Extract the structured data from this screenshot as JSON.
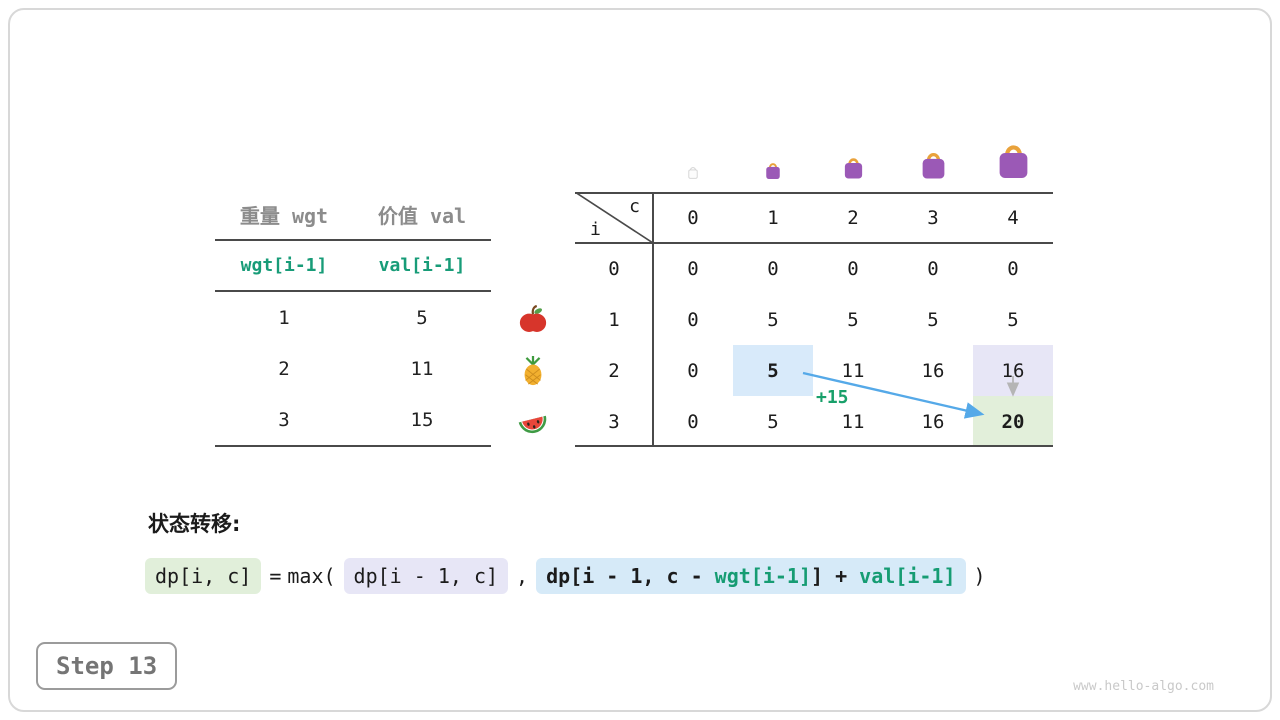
{
  "card": {
    "step_label": "Step 13",
    "watermark": "www.hello-algo.com"
  },
  "item_table": {
    "col_headers": [
      "重量 wgt",
      "价值 val"
    ],
    "var_row": [
      "wgt[i-1]",
      "val[i-1]"
    ],
    "rows": [
      [
        "1",
        "5"
      ],
      [
        "2",
        "11"
      ],
      [
        "3",
        "15"
      ]
    ]
  },
  "items": [
    {
      "icon": "apple-icon"
    },
    {
      "icon": "pineapple-icon"
    },
    {
      "icon": "watermelon-icon"
    }
  ],
  "dp_table": {
    "corner": {
      "row_label": "i",
      "col_label": "c"
    },
    "col_headers": [
      "0",
      "1",
      "2",
      "3",
      "4"
    ],
    "row_headers": [
      "0",
      "1",
      "2",
      "3"
    ],
    "values": [
      [
        "0",
        "0",
        "0",
        "0",
        "0"
      ],
      [
        "0",
        "5",
        "5",
        "5",
        "5"
      ],
      [
        "0",
        "5",
        "11",
        "16",
        "16"
      ],
      [
        "0",
        "5",
        "11",
        "16",
        "20"
      ]
    ],
    "highlights": [
      {
        "row": 2,
        "col": 1,
        "style": "hl-blue",
        "bold": true
      },
      {
        "row": 2,
        "col": 4,
        "style": "hl-lavender",
        "bold": false
      },
      {
        "row": 3,
        "col": 4,
        "style": "hl-green",
        "bold": true
      }
    ],
    "bags": [
      {
        "icon": "bag-outline-icon",
        "variant": "ghost"
      },
      {
        "icon": "bag-icon",
        "variant": "purple"
      },
      {
        "icon": "bag-icon",
        "variant": "purple"
      },
      {
        "icon": "bag-icon",
        "variant": "purple"
      },
      {
        "icon": "bag-icon",
        "variant": "purple"
      }
    ],
    "transition_annotation": "+15"
  },
  "formula": {
    "heading": "状态转移:",
    "lhs": "dp[i, c]",
    "equals": "=",
    "func": "max(",
    "arg1": "dp[i - 1, c]",
    "separator": ",",
    "arg2_parts": {
      "p1": "dp[i - 1, c - ",
      "wgt": "wgt[i-1]",
      "p2": "] + ",
      "val": "val[i-1]"
    },
    "close": ")"
  },
  "colors": {
    "accent_green": "#169c73",
    "highlight_blue": "#d8eafa",
    "highlight_lavender": "#e7e6f6",
    "highlight_green": "#e2efda",
    "arrow_blue": "#55a9e8",
    "bag_purple": "#9b59b6",
    "bag_handle": "#e9a23b"
  }
}
